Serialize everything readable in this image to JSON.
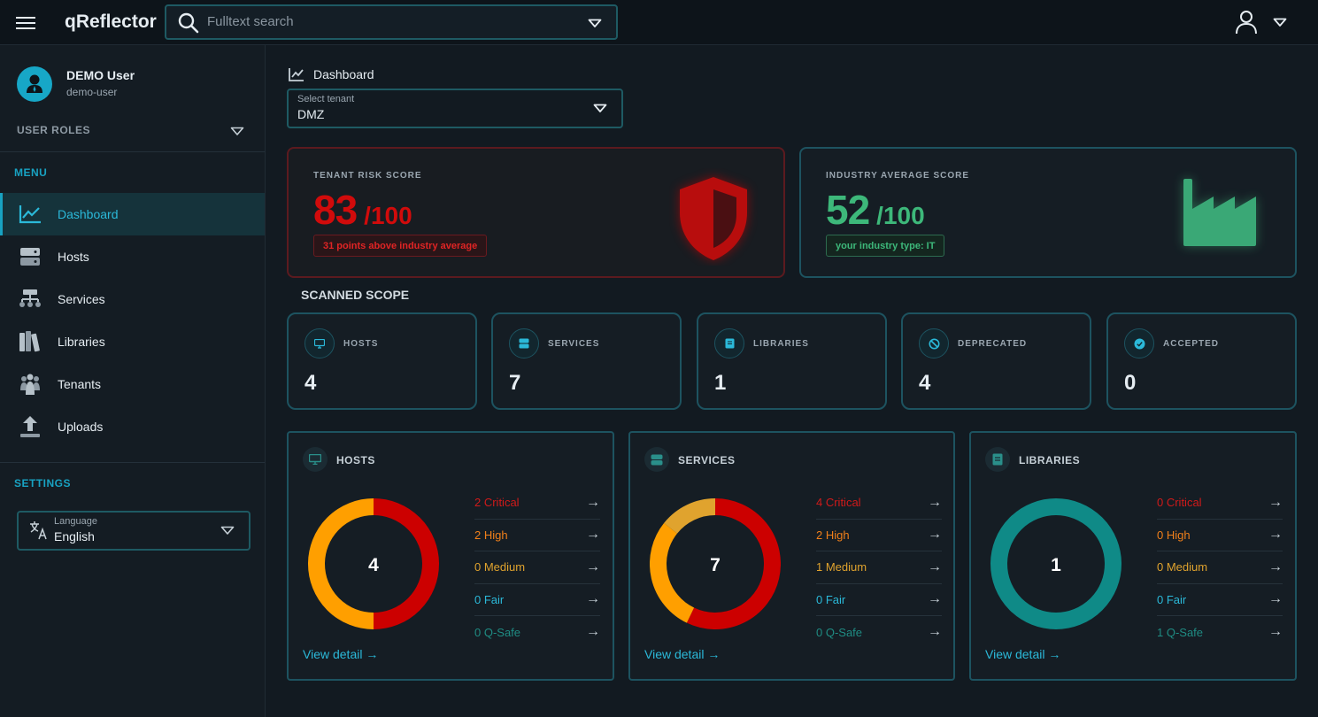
{
  "header": {
    "brand": "qReflector",
    "search_placeholder": "Fulltext search"
  },
  "sidebar": {
    "user_name": "DEMO User",
    "user_id": "demo-user",
    "roles_label": "USER ROLES",
    "menu_label": "MENU",
    "items": [
      {
        "label": "Dashboard",
        "icon": "chart-line-icon",
        "active": true
      },
      {
        "label": "Hosts",
        "icon": "server-icon"
      },
      {
        "label": "Services",
        "icon": "hierarchy-icon"
      },
      {
        "label": "Libraries",
        "icon": "books-icon"
      },
      {
        "label": "Tenants",
        "icon": "people-icon"
      },
      {
        "label": "Uploads",
        "icon": "upload-icon"
      }
    ],
    "settings_label": "SETTINGS",
    "language_label": "Language",
    "language_value": "English"
  },
  "main": {
    "breadcrumb": "Dashboard",
    "tenant_label": "Select tenant",
    "tenant_value": "DMZ",
    "risk": {
      "title": "TENANT RISK SCORE",
      "score": "83",
      "out_of": "/100",
      "badge": "31 points above industry average",
      "color": "#d10b0b"
    },
    "industry": {
      "title": "INDUSTRY AVERAGE SCORE",
      "score": "52",
      "out_of": "/100",
      "badge": "your industry type: IT",
      "color": "#3db87a"
    },
    "scope_title": "SCANNED SCOPE",
    "scope": [
      {
        "label": "HOSTS",
        "value": "4",
        "icon": "monitor-icon"
      },
      {
        "label": "SERVICES",
        "value": "7",
        "icon": "server-icon"
      },
      {
        "label": "LIBRARIES",
        "value": "1",
        "icon": "book-icon"
      },
      {
        "label": "DEPRECATED",
        "value": "4",
        "icon": "ban-icon"
      },
      {
        "label": "ACCEPTED",
        "value": "0",
        "icon": "check-badge-icon"
      }
    ],
    "cards": [
      {
        "title": "HOSTS",
        "icon": "monitor-icon",
        "total": "4",
        "segments": [
          {
            "value": 2,
            "color": "#cc0000"
          },
          {
            "value": 2,
            "color": "#ff9f00"
          }
        ],
        "rows": [
          "2 Critical",
          "2 High",
          "0 Medium",
          "0 Fair",
          "0 Q-Safe"
        ],
        "view_detail": "View detail →"
      },
      {
        "title": "SERVICES",
        "icon": "server-icon",
        "total": "7",
        "segments": [
          {
            "value": 4,
            "color": "#cc0000"
          },
          {
            "value": 2,
            "color": "#ff9f00"
          },
          {
            "value": 1,
            "color": "#e0a32e"
          }
        ],
        "rows": [
          "4 Critical",
          "2 High",
          "1 Medium",
          "0 Fair",
          "0 Q-Safe"
        ],
        "view_detail": "View detail →"
      },
      {
        "title": "LIBRARIES",
        "icon": "book-icon",
        "total": "1",
        "segments": [
          {
            "value": 1,
            "color": "#0f8a87"
          }
        ],
        "rows": [
          "0 Critical",
          "0 High",
          "0 Medium",
          "0 Fair",
          "1 Q-Safe"
        ],
        "view_detail": "View detail →"
      }
    ],
    "row_colors": [
      "#d11a1a",
      "#f07f1a",
      "#e0a32e",
      "#2bb9d9",
      "#1f8c83"
    ],
    "arrow": "→"
  }
}
